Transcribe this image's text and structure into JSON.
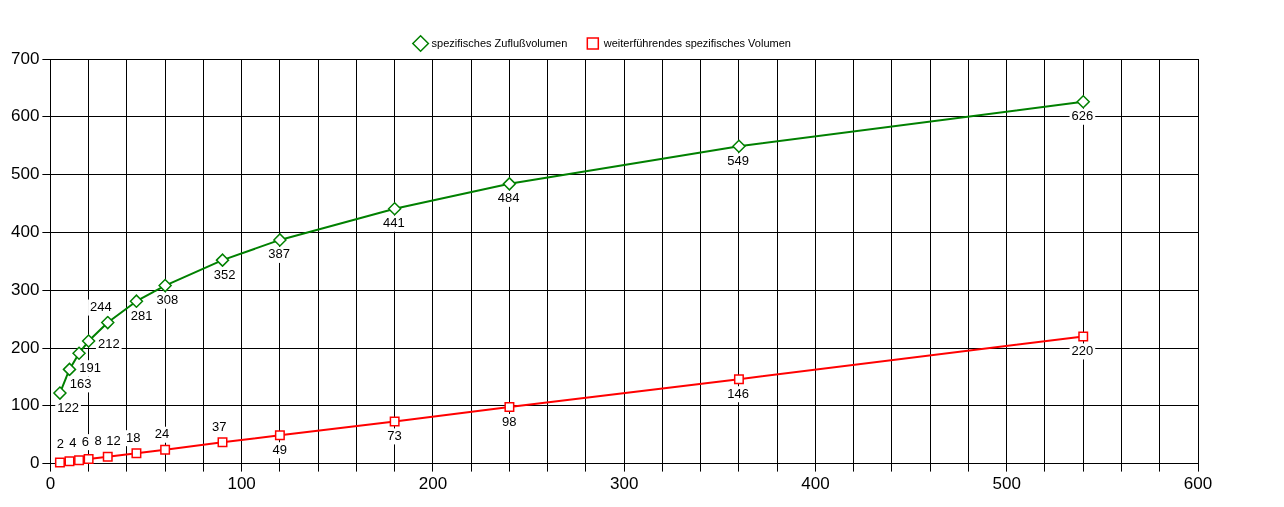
{
  "chart_data": {
    "type": "line",
    "x": [
      5,
      10,
      15,
      20,
      30,
      45,
      60,
      90,
      120,
      180,
      240,
      360,
      540
    ],
    "series": [
      {
        "name": "spezifisches Zuflußvolumen",
        "color": "#008000",
        "marker": "diamond",
        "values": [
          122,
          163,
          191,
          212,
          244,
          281,
          308,
          352,
          387,
          441,
          484,
          549,
          626
        ]
      },
      {
        "name": "weiterführendes spezifisches Volumen",
        "color": "#ff0000",
        "marker": "square",
        "values": [
          2,
          4,
          6,
          8,
          12,
          18,
          24,
          37,
          49,
          73,
          98,
          146,
          220
        ]
      }
    ],
    "xlim": [
      0,
      600
    ],
    "xticks": [
      0,
      {
        "value": 20,
        "label": null
      },
      {
        "value": 40,
        "label": null
      },
      {
        "value": 60,
        "label": null
      },
      {
        "value": 80,
        "label": null
      },
      100,
      {
        "value": 120,
        "label": null
      },
      {
        "value": 140,
        "label": null
      },
      {
        "value": 160,
        "label": null
      },
      {
        "value": 180,
        "label": null
      },
      200,
      {
        "value": 220,
        "label": null
      },
      {
        "value": 240,
        "label": null
      },
      {
        "value": 260,
        "label": null
      },
      {
        "value": 280,
        "label": null
      },
      300,
      {
        "value": 320,
        "label": null
      },
      {
        "value": 340,
        "label": null
      },
      {
        "value": 360,
        "label": null
      },
      {
        "value": 380,
        "label": null
      },
      400,
      {
        "value": 420,
        "label": null
      },
      {
        "value": 440,
        "label": null
      },
      {
        "value": 460,
        "label": null
      },
      {
        "value": 480,
        "label": null
      },
      500,
      {
        "value": 520,
        "label": null
      },
      {
        "value": 540,
        "label": null
      },
      {
        "value": 560,
        "label": null
      },
      {
        "value": 580,
        "label": null
      },
      600
    ],
    "ylim": [
      0,
      700
    ],
    "yticks": [
      0,
      100,
      200,
      300,
      400,
      500,
      600,
      700
    ],
    "grid": true,
    "legend": "top",
    "data_labels": true,
    "line_style": "solid"
  }
}
